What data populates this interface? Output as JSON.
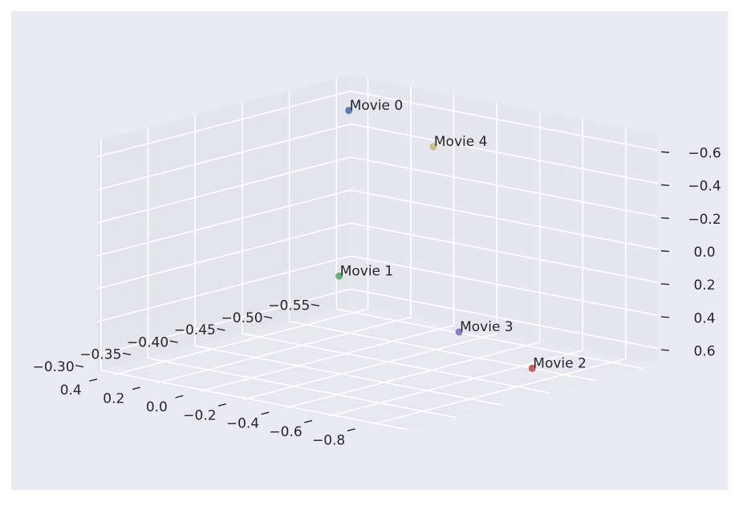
{
  "chart_data": {
    "type": "scatter",
    "projection": "3d",
    "title": "",
    "xlabel": "",
    "ylabel": "",
    "zlabel": "",
    "grid": true,
    "legend": "none",
    "colors": {
      "figure_background": "#ffffff",
      "axes_background": "#eaeaf2",
      "pane_left": "#e4e4ec",
      "pane_right": "#e6e6ee",
      "pane_floor": "#e8e8f0",
      "grid_line": "#ffffff",
      "tick_text": "#262626"
    },
    "axes": {
      "x": {
        "lim": [
          -0.565,
          -0.296
        ],
        "ticks": [
          -0.3,
          -0.35,
          -0.4,
          -0.45,
          -0.5,
          -0.55
        ],
        "tick_labels": [
          "−0.30",
          "−0.35",
          "−0.40",
          "−0.45",
          "−0.50",
          "−0.55"
        ]
      },
      "y": {
        "lim": [
          -0.95,
          0.48
        ],
        "ticks": [
          -0.8,
          -0.6,
          -0.4,
          -0.2,
          0.0,
          0.2,
          0.4
        ],
        "tick_labels": [
          "−0.8",
          "−0.6",
          "−0.4",
          "−0.2",
          "0.0",
          "0.2",
          "0.4"
        ]
      },
      "z": {
        "lim": [
          0.7,
          -0.7
        ],
        "inverted": true,
        "ticks": [
          -0.6,
          -0.4,
          -0.2,
          0.0,
          0.2,
          0.4,
          0.6
        ],
        "tick_labels": [
          "−0.6",
          "−0.4",
          "−0.2",
          "0.0",
          "0.2",
          "0.4",
          "0.6"
        ]
      }
    },
    "points": [
      {
        "label": "Movie 0",
        "x": -0.548,
        "y": 0.414,
        "z": -0.524,
        "color": "#4c72b0"
      },
      {
        "label": "Movie 1",
        "x": -0.302,
        "y": -0.62,
        "z": -0.145,
        "color": "#55a868"
      },
      {
        "label": "Movie 2",
        "x": -0.5,
        "y": -0.65,
        "z": 0.7,
        "color": "#c44e52"
      },
      {
        "label": "Movie 3",
        "x": -0.525,
        "y": -0.2,
        "z": 0.63,
        "color": "#8172b2"
      },
      {
        "label": "Movie 4",
        "x": -0.55,
        "y": 0.03,
        "z": -0.398,
        "color": "#ccb974"
      }
    ]
  }
}
